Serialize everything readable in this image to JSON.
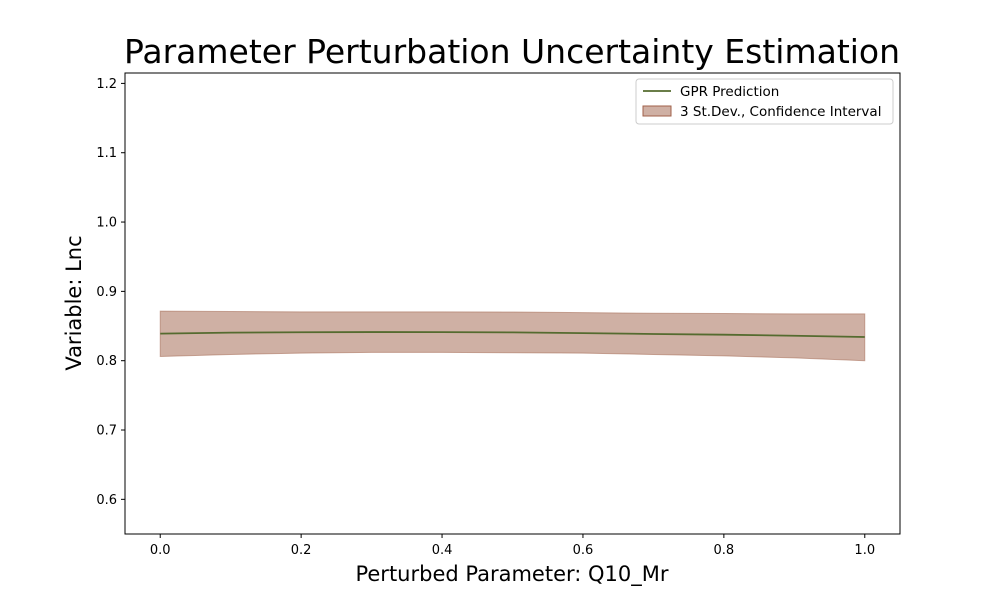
{
  "chart_data": {
    "type": "line",
    "title": "Parameter Perturbation Uncertainty Estimation",
    "xlabel": "Perturbed Parameter: Q10_Mr",
    "ylabel": "Variable: Lnc",
    "xlim": [
      -0.05,
      1.05
    ],
    "ylim": [
      0.55,
      1.215
    ],
    "x_ticks": [
      "0.0",
      "0.2",
      "0.4",
      "0.6",
      "0.8",
      "1.0"
    ],
    "y_ticks": [
      "0.6",
      "0.7",
      "0.8",
      "0.9",
      "1.0",
      "1.1",
      "1.2"
    ],
    "x_tick_values": [
      0.0,
      0.2,
      0.4,
      0.6,
      0.8,
      1.0
    ],
    "y_tick_values": [
      0.6,
      0.7,
      0.8,
      0.9,
      1.0,
      1.1,
      1.2
    ],
    "grid": false,
    "legend_position": "top-right",
    "series": [
      {
        "name": "GPR Prediction",
        "kind": "line",
        "color": "#556b2f",
        "x": [
          0.0,
          0.1,
          0.2,
          0.3,
          0.4,
          0.5,
          0.6,
          0.7,
          0.8,
          0.9,
          1.0
        ],
        "y": [
          0.839,
          0.8405,
          0.841,
          0.8413,
          0.8412,
          0.8408,
          0.8398,
          0.8385,
          0.8375,
          0.836,
          0.8342
        ]
      },
      {
        "name": "3 St.Dev., Confidence Interval",
        "kind": "band",
        "color": "#a0614a",
        "x": [
          0.0,
          0.1,
          0.2,
          0.3,
          0.4,
          0.5,
          0.6,
          0.7,
          0.8,
          0.9,
          1.0
        ],
        "lower": [
          0.806,
          0.809,
          0.811,
          0.812,
          0.812,
          0.8115,
          0.811,
          0.809,
          0.807,
          0.804,
          0.8
        ],
        "upper": [
          0.8715,
          0.871,
          0.8705,
          0.8705,
          0.8705,
          0.8703,
          0.8693,
          0.8685,
          0.868,
          0.8675,
          0.8675
        ]
      }
    ]
  }
}
